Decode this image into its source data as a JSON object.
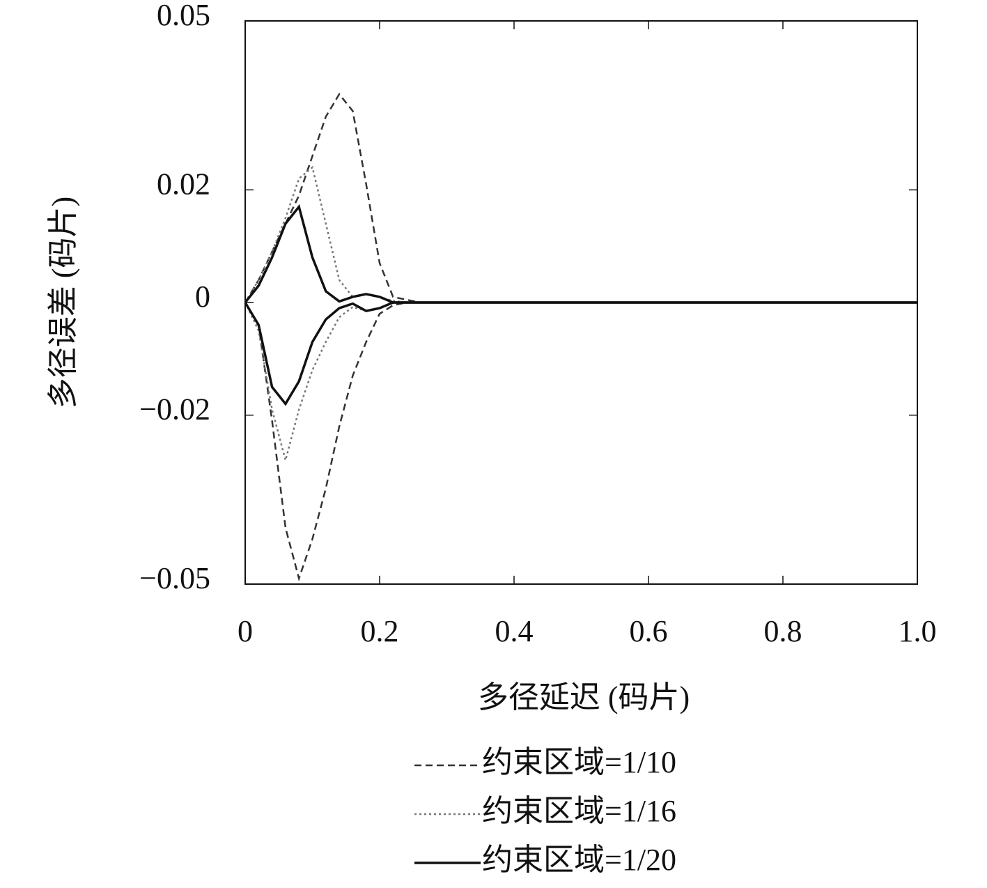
{
  "chart_data": {
    "type": "envelope-line",
    "xlabel": "多径延迟 (码片)",
    "ylabel": "多径误差 (码片)",
    "x": [
      0,
      0.02,
      0.04,
      0.06,
      0.08,
      0.1,
      0.12,
      0.14,
      0.16,
      0.18,
      0.2,
      0.22,
      0.24,
      0.26,
      0.3,
      0.4,
      0.5,
      0.6,
      0.7,
      0.8,
      0.9,
      1.0
    ],
    "series": [
      {
        "name": "约束区域=1/10",
        "color": "#333333",
        "dash": "dashed",
        "upper": [
          0,
          0.004,
          0.009,
          0.014,
          0.019,
          0.026,
          0.033,
          0.037,
          0.034,
          0.021,
          0.007,
          0.001,
          0.0005,
          0,
          0,
          0,
          0,
          0,
          0,
          0,
          0,
          0
        ],
        "lower": [
          0,
          -0.004,
          -0.021,
          -0.04,
          -0.049,
          -0.042,
          -0.033,
          -0.022,
          -0.013,
          -0.007,
          -0.002,
          -0.0005,
          0,
          0,
          0,
          0,
          0,
          0,
          0,
          0,
          0,
          0
        ]
      },
      {
        "name": "约束区域=1/16",
        "color": "#777777",
        "dash": "dotted",
        "upper": [
          0,
          0.004,
          0.009,
          0.015,
          0.022,
          0.024,
          0.014,
          0.004,
          0.001,
          0.0015,
          0.001,
          0.0003,
          0,
          0,
          0,
          0,
          0,
          0,
          0,
          0,
          0,
          0
        ],
        "lower": [
          0,
          -0.005,
          -0.019,
          -0.028,
          -0.019,
          -0.012,
          -0.007,
          -0.0026,
          -0.0008,
          -0.0015,
          -0.001,
          0,
          0,
          0,
          0,
          0,
          0,
          0,
          0,
          0,
          0,
          0
        ]
      },
      {
        "name": "约束区域=1/20",
        "color": "#111111",
        "dash": "solid",
        "upper": [
          0,
          0.003,
          0.008,
          0.014,
          0.017,
          0.008,
          0.002,
          0.0002,
          0.001,
          0.0015,
          0.001,
          0,
          0,
          0,
          0,
          0,
          0,
          0,
          0,
          0,
          0,
          0
        ],
        "lower": [
          0,
          -0.004,
          -0.015,
          -0.018,
          -0.014,
          -0.007,
          -0.003,
          -0.001,
          -0.0002,
          -0.0015,
          -0.001,
          0,
          0,
          0,
          0,
          0,
          0,
          0,
          0,
          0,
          0,
          0
        ]
      }
    ],
    "xlim": [
      0,
      1
    ],
    "xticks": [
      0,
      0.2,
      0.4,
      0.6,
      0.8,
      {
        "value": 1,
        "label": "1.0"
      }
    ],
    "ylim": [
      -0.05,
      0.05
    ],
    "yticks": [
      0.05,
      0.02,
      0,
      {
        "value": -0.02,
        "label": "−0.02"
      },
      {
        "value": -0.05,
        "label": "−0.05"
      }
    ],
    "grid": false
  }
}
